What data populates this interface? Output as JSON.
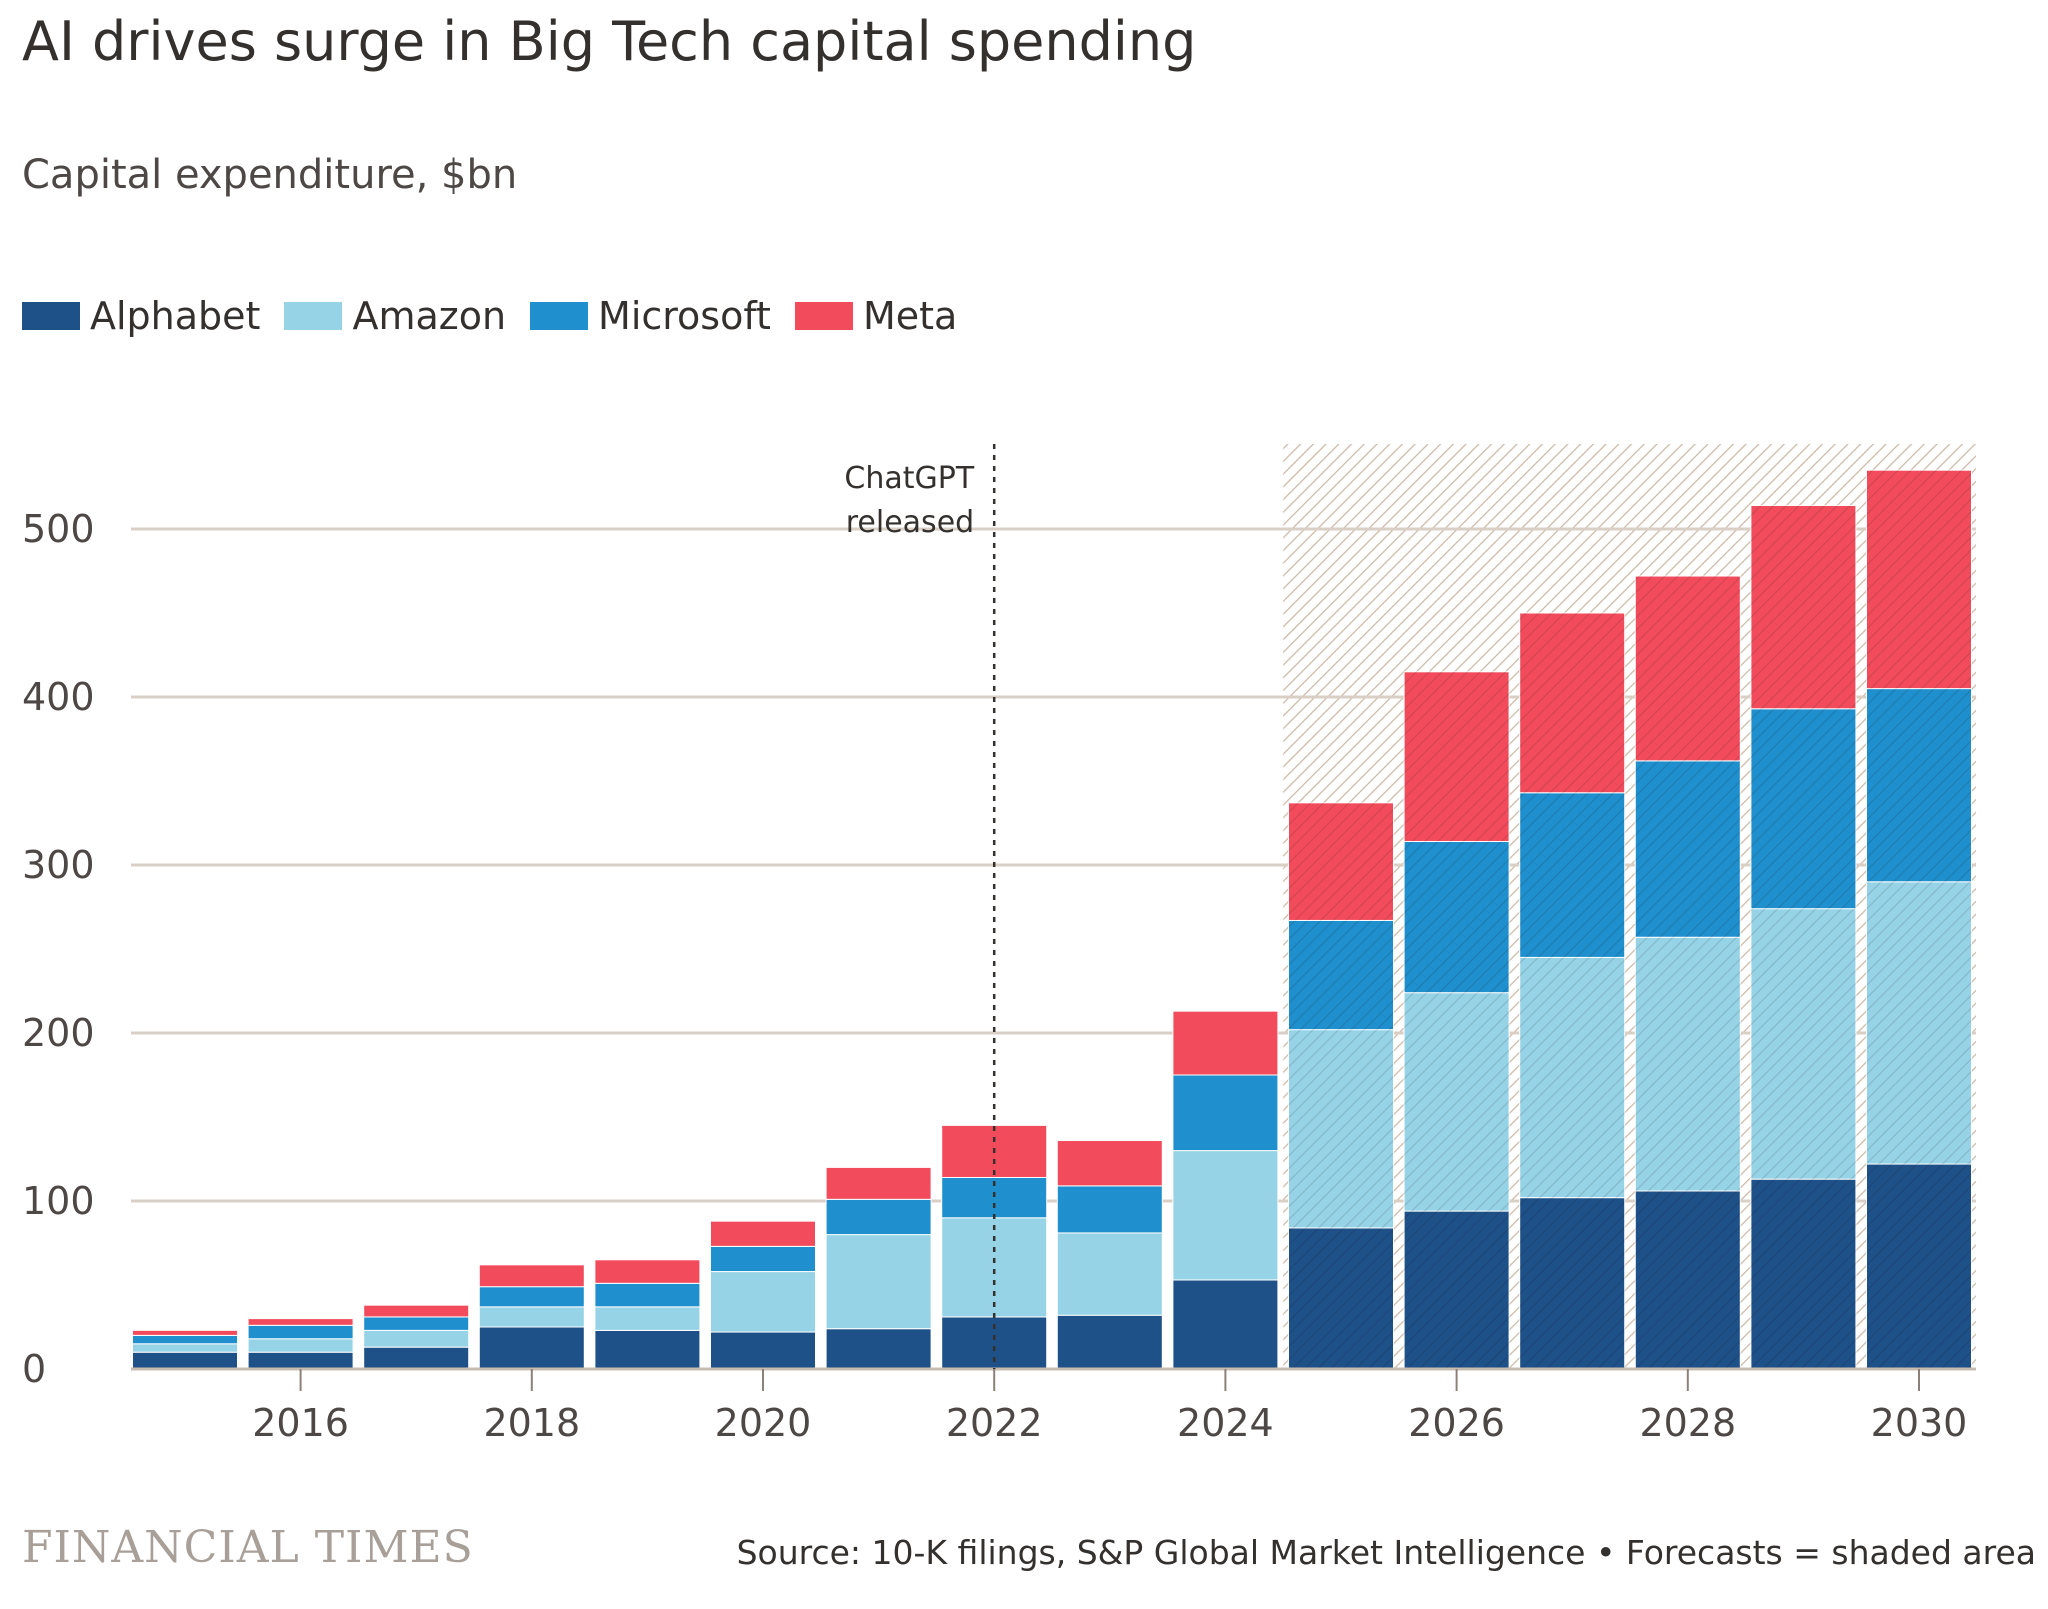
{
  "chart_data": {
    "type": "bar",
    "stacked": true,
    "title": "AI drives surge in Big Tech capital spending",
    "subtitle": "Capital expenditure, $bn",
    "xlabel": "",
    "ylabel": "",
    "ylim": [
      0,
      550
    ],
    "yticks": [
      0,
      100,
      200,
      300,
      400,
      500
    ],
    "xticks": [
      2016,
      2018,
      2020,
      2022,
      2024,
      2026,
      2028,
      2030
    ],
    "categories": [
      2015,
      2016,
      2017,
      2018,
      2019,
      2020,
      2021,
      2022,
      2023,
      2024,
      2025,
      2026,
      2027,
      2028,
      2029,
      2030
    ],
    "series": [
      {
        "name": "Alphabet",
        "color": "#1f5189",
        "values": [
          10,
          10,
          13,
          25,
          23,
          22,
          24,
          31,
          32,
          53,
          84,
          94,
          102,
          106,
          113,
          122
        ]
      },
      {
        "name": "Amazon",
        "color": "#96d3e6",
        "values": [
          5,
          8,
          10,
          12,
          14,
          36,
          56,
          59,
          49,
          77,
          118,
          130,
          143,
          151,
          161,
          168
        ]
      },
      {
        "name": "Microsoft",
        "color": "#1f8fcd",
        "values": [
          5,
          8,
          8,
          12,
          14,
          15,
          21,
          24,
          28,
          45,
          65,
          90,
          98,
          105,
          119,
          115
        ]
      },
      {
        "name": "Meta",
        "color": "#f24c5c",
        "values": [
          3,
          4,
          7,
          13,
          14,
          15,
          19,
          31,
          27,
          38,
          70,
          101,
          107,
          110,
          121,
          130
        ]
      }
    ],
    "forecast_start": 2025,
    "annotation": {
      "x": 2022,
      "text_line1": "ChatGPT",
      "text_line2": "released"
    },
    "grid": true,
    "legend_position": "top-left"
  },
  "footer": {
    "logo": "FINANCIAL TIMES",
    "source": "Source: 10-K filings, S&P Global Market Intelligence • Forecasts = shaded area"
  }
}
